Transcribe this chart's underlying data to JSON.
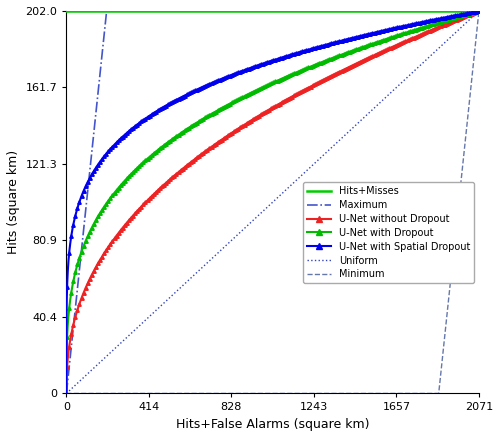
{
  "x_max": 2071,
  "y_max": 202.0,
  "x_ticks": [
    0,
    414,
    828,
    1243,
    1657,
    2071
  ],
  "y_ticks": [
    0,
    40.4,
    80.9,
    121.3,
    161.7,
    202.0
  ],
  "y_tick_labels": [
    "0",
    "40.4",
    "80.9",
    "121.3",
    "161.7",
    "202.0"
  ],
  "xlabel": "Hits+False Alarms (square km)",
  "ylabel": "Hits (square km)",
  "bg_color": "#ffffff",
  "line_colors": {
    "hits_misses": "#00cc00",
    "maximum": "#4455cc",
    "unet_no_dropout": "#ee2222",
    "unet_dropout": "#00bb00",
    "unet_spatial": "#0000ee",
    "uniform": "#3344bb",
    "minimum": "#6677aa"
  },
  "curve_power_no_dropout": 0.42,
  "curve_power_dropout": 0.3,
  "curve_power_spatial": 0.2,
  "n_markers": 200,
  "marker_size": 2.5,
  "hits_misses_x": 202.0,
  "min_turn_x": 1869.0
}
